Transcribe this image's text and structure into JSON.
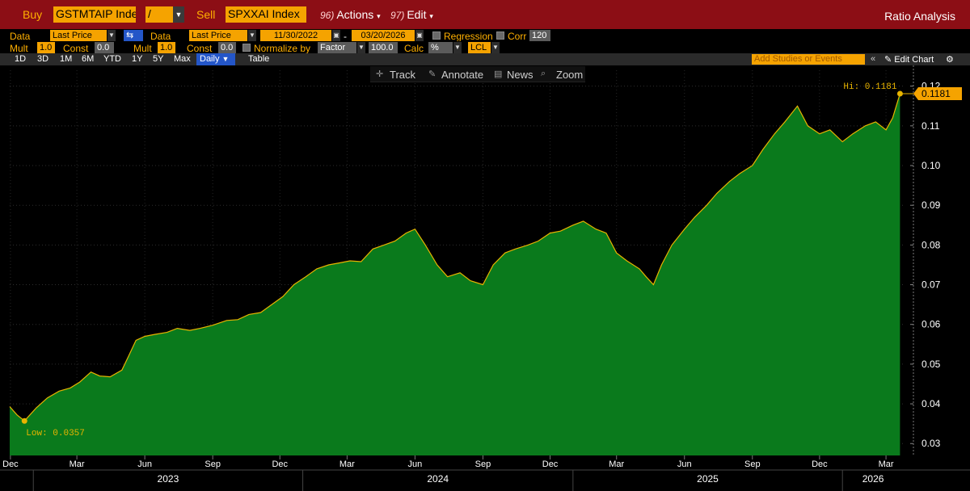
{
  "topbar": {
    "buy_label": "Buy",
    "buy_ticker": "GSTMTAIP Inde",
    "operator": "/",
    "sell_label": "Sell",
    "sell_ticker": "SPXXAI Index",
    "actions_num": "96)",
    "actions_label": "Actions",
    "edit_num": "97)",
    "edit_label": "Edit",
    "title": "Ratio Analysis"
  },
  "controls": {
    "data1_label": "Data",
    "data1_value": "Last Price",
    "data2_label": "Data",
    "data2_value": "Last Price",
    "start_date": "11/30/2022",
    "date_sep": "-",
    "end_date": "03/20/2026",
    "regression_label": "Regression",
    "corr_label": "Corr",
    "corr_value": "120",
    "mult1_label": "Mult",
    "mult1_value": "1.0",
    "const1_label": "Const",
    "const1_value": "0.0",
    "mult2_label": "Mult",
    "mult2_value": "1.0",
    "const2_label": "Const",
    "const2_value": "0.0",
    "normalize_label": "Normalize by",
    "normalize_value": "Factor",
    "normalize_amount": "100.0",
    "calc_label": "Calc",
    "calc_value": "%",
    "currency_value": "LCL"
  },
  "range_bar": {
    "buttons": [
      "1D",
      "3D",
      "1M",
      "6M",
      "YTD",
      "1Y",
      "5Y",
      "Max"
    ],
    "frequency": "Daily",
    "table_label": "Table",
    "add_studies": "Add Studies or Events",
    "edit_chart": "Edit Chart"
  },
  "toolbox": {
    "track": "Track",
    "annotate": "Annotate",
    "news": "News",
    "zoom": "Zoom"
  },
  "colors": {
    "header_bg": "#8c0e15",
    "accent": "#f5a300",
    "area_fill": "#0a7a1c",
    "line": "#e8b400"
  },
  "chart_data": {
    "type": "area",
    "ylim": [
      0.027,
      0.124
    ],
    "yticks": [
      0.03,
      0.04,
      0.05,
      0.06,
      0.07,
      0.08,
      0.09,
      0.1,
      0.11,
      0.12
    ],
    "ytick_labels": [
      "0.03",
      "0.04",
      "0.05",
      "0.06",
      "0.07",
      "0.08",
      "0.09",
      "0.10",
      "0.11",
      "0.12"
    ],
    "x_month_labels": [
      "Dec",
      "Mar",
      "Jun",
      "Sep",
      "Dec",
      "Mar",
      "Jun",
      "Sep",
      "Dec",
      "Mar",
      "Jun",
      "Sep",
      "Dec",
      "Mar"
    ],
    "x_month_dates": [
      "2022-12-01",
      "2023-03-01",
      "2023-06-01",
      "2023-09-01",
      "2023-12-01",
      "2024-03-01",
      "2024-06-01",
      "2024-09-01",
      "2024-12-01",
      "2025-03-01",
      "2025-06-01",
      "2025-09-01",
      "2025-12-01",
      "2026-03-01"
    ],
    "x_year_labels": [
      "2023",
      "2024",
      "2025",
      "2026"
    ],
    "x_year_dates": [
      "2023-01-01",
      "2024-01-01",
      "2025-01-01",
      "2026-01-01"
    ],
    "xlim": [
      "2022-11-30",
      "2026-03-25"
    ],
    "low_label": "Low: 0.0357",
    "hi_label": "Hi: 0.1181",
    "last_value_label": "0.1181",
    "low": {
      "x": "2022-12-20",
      "y": 0.0357
    },
    "hi": {
      "x": "2026-03-20",
      "y": 0.1181
    },
    "series": [
      {
        "x": [
          "2022-11-30",
          "2022-12-10",
          "2022-12-20",
          "2023-01-05",
          "2023-01-20",
          "2023-02-05",
          "2023-02-20",
          "2023-03-05",
          "2023-03-20",
          "2023-04-01",
          "2023-04-15",
          "2023-05-01",
          "2023-05-10",
          "2023-05-20",
          "2023-06-01",
          "2023-06-15",
          "2023-07-01",
          "2023-07-15",
          "2023-08-01",
          "2023-08-15",
          "2023-09-01",
          "2023-09-20",
          "2023-10-05",
          "2023-10-20",
          "2023-11-05",
          "2023-11-20",
          "2023-12-05",
          "2023-12-20",
          "2024-01-05",
          "2024-01-20",
          "2024-02-05",
          "2024-02-20",
          "2024-03-05",
          "2024-03-20",
          "2024-04-05",
          "2024-04-20",
          "2024-05-05",
          "2024-05-20",
          "2024-06-01",
          "2024-06-15",
          "2024-07-01",
          "2024-07-15",
          "2024-08-01",
          "2024-08-15",
          "2024-09-01",
          "2024-09-15",
          "2024-10-01",
          "2024-10-15",
          "2024-11-01",
          "2024-11-15",
          "2024-12-01",
          "2024-12-15",
          "2025-01-01",
          "2025-01-15",
          "2025-02-01",
          "2025-02-15",
          "2025-03-01",
          "2025-03-15",
          "2025-04-01",
          "2025-04-10",
          "2025-04-20",
          "2025-05-01",
          "2025-05-15",
          "2025-06-01",
          "2025-06-15",
          "2025-07-01",
          "2025-07-15",
          "2025-08-01",
          "2025-08-15",
          "2025-09-01",
          "2025-09-15",
          "2025-10-01",
          "2025-10-15",
          "2025-11-01",
          "2025-11-15",
          "2025-12-01",
          "2025-12-15",
          "2026-01-01",
          "2026-01-15",
          "2026-02-01",
          "2026-02-15",
          "2026-03-01",
          "2026-03-10",
          "2026-03-20"
        ],
        "y": [
          0.0393,
          0.0372,
          0.0357,
          0.039,
          0.0415,
          0.0432,
          0.044,
          0.0455,
          0.048,
          0.047,
          0.0468,
          0.0485,
          0.052,
          0.056,
          0.057,
          0.0575,
          0.058,
          0.059,
          0.0585,
          0.059,
          0.0598,
          0.061,
          0.0612,
          0.0625,
          0.063,
          0.065,
          0.067,
          0.07,
          0.072,
          0.074,
          0.075,
          0.0755,
          0.076,
          0.0758,
          0.079,
          0.08,
          0.081,
          0.083,
          0.084,
          0.08,
          0.075,
          0.072,
          0.073,
          0.071,
          0.07,
          0.075,
          0.078,
          0.079,
          0.08,
          0.081,
          0.083,
          0.0835,
          0.085,
          0.086,
          0.084,
          0.083,
          0.078,
          0.076,
          0.074,
          0.072,
          0.07,
          0.075,
          0.08,
          0.084,
          0.087,
          0.09,
          0.093,
          0.096,
          0.098,
          0.1,
          0.104,
          0.108,
          0.111,
          0.115,
          0.11,
          0.108,
          0.109,
          0.106,
          0.108,
          0.11,
          0.111,
          0.109,
          0.112,
          0.1181
        ]
      }
    ]
  }
}
